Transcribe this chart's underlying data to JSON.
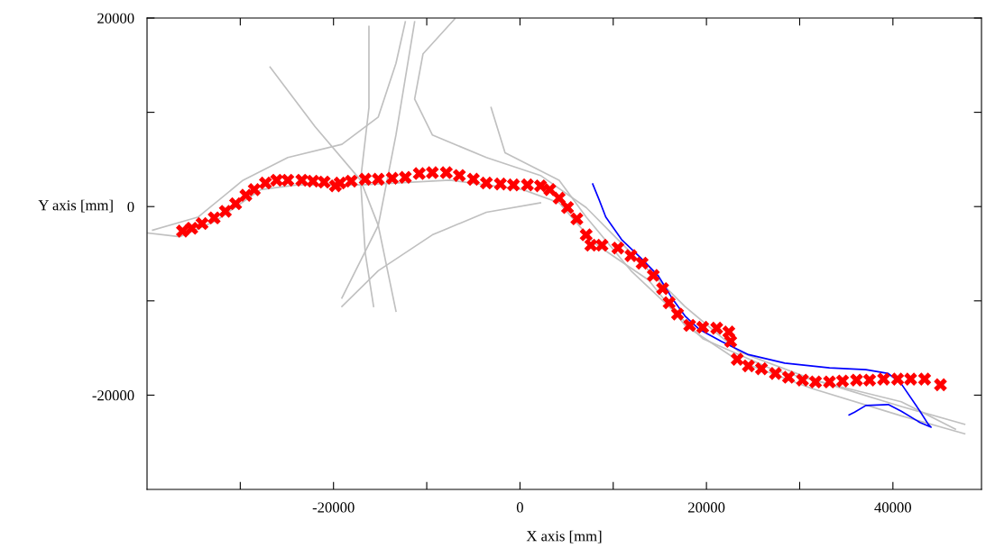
{
  "chart_data": {
    "type": "line",
    "xlabel": "X axis [mm]",
    "ylabel": "Y axis [mm]",
    "xlim": [
      -40000,
      49500
    ],
    "ylim": [
      -30000,
      20000
    ],
    "xticks": [
      {
        "value": -30000,
        "label": null
      },
      -20000,
      {
        "value": -10000,
        "label": null
      },
      0,
      {
        "value": 10000,
        "label": null
      },
      20000,
      {
        "value": 30000,
        "label": null
      },
      40000
    ],
    "yticks": [
      -20000,
      {
        "value": -10000,
        "label": null
      },
      0,
      {
        "value": 10000,
        "label": null
      },
      20000
    ],
    "grid": false,
    "series": [
      {
        "type": "line",
        "color": "#c0c0c0",
        "x": [
          -39900,
          -36500,
          -32600,
          -27800,
          -23900,
          -17100,
          -7500,
          300,
          4200,
          8000,
          13800,
          17700,
          23500,
          31300,
          40900,
          47700
        ],
        "values": [
          -2800,
          -3200,
          -1500,
          1800,
          2300,
          2300,
          2800,
          1800,
          400,
          -3900,
          -7800,
          -12600,
          -16400,
          -19300,
          -22200,
          -24100
        ]
      },
      {
        "type": "line",
        "color": "#c0c0c0",
        "x": [
          -39400,
          -34500,
          -29700,
          -24900,
          -19100,
          -15200,
          -13300,
          -12300
        ],
        "values": [
          -2500,
          -1100,
          2800,
          5200,
          6600,
          9500,
          15200,
          19600
        ]
      },
      {
        "type": "line",
        "color": "#c0c0c0",
        "x": [
          -7000,
          -10400,
          -11300,
          -9400,
          -3600,
          2200,
          7100,
          11900,
          17700,
          23500,
          31300,
          40900,
          47700
        ],
        "values": [
          19900,
          16200,
          11400,
          7600,
          5200,
          3300,
          -100,
          -4900,
          -10600,
          -15400,
          -18300,
          -21200,
          -23100
        ]
      },
      {
        "type": "line",
        "color": "#c0c0c0",
        "x": [
          -26800,
          -22000,
          -17100,
          -15200,
          -14200,
          -13300
        ],
        "values": [
          14800,
          8500,
          2800,
          -2000,
          -6800,
          -11100
        ]
      },
      {
        "type": "line",
        "color": "#c0c0c0",
        "x": [
          -19100,
          -15200,
          -9400,
          -3600,
          2200
        ],
        "values": [
          -10600,
          -6800,
          -3000,
          -600,
          400
        ]
      },
      {
        "type": "line",
        "color": "#c0c0c0",
        "x": [
          -16200,
          -16200,
          -17100,
          -16600,
          -15700
        ],
        "values": [
          19100,
          10500,
          2800,
          -4900,
          -10600
        ]
      },
      {
        "type": "line",
        "color": "#c0c0c0",
        "x": [
          -11300,
          -13300,
          -15200,
          -19100
        ],
        "values": [
          19600,
          7600,
          -2000,
          -9700
        ]
      },
      {
        "type": "line",
        "color": "#c0c0c0",
        "x": [
          -3100,
          -1600,
          4200,
          7100,
          11900,
          19600,
          27400,
          40900,
          46700
        ],
        "values": [
          10500,
          5700,
          2800,
          -1100,
          -6800,
          -14000,
          -17400,
          -20700,
          -23600
        ]
      },
      {
        "type": "scatter",
        "marker": "cross",
        "color": "#ff0000",
        "x": [
          -36200,
          -35200,
          -34100,
          -32800,
          -31600,
          -30500,
          -29400,
          -28500,
          -27300,
          -26100,
          -24900,
          -23400,
          -22200,
          -21000,
          -19800,
          -19300,
          -18100,
          -16600,
          -15200,
          -13700,
          -12300,
          -10800,
          -9400,
          -7900,
          -6500,
          -5000,
          -3600,
          -2100,
          -700,
          800,
          2200,
          3200,
          4200,
          5100,
          6100,
          7100,
          7600,
          8800,
          10500,
          11900,
          13100,
          14300,
          15300,
          16000,
          16900,
          18200,
          19600,
          21100,
          22400,
          22600,
          23300,
          24500,
          25900,
          27400,
          28800,
          30300,
          31700,
          33200,
          34600,
          36100,
          37500,
          39000,
          40500,
          41900,
          43400,
          45100
        ],
        "values": [
          -2600,
          -2300,
          -1800,
          -1200,
          -500,
          300,
          1200,
          1800,
          2500,
          2800,
          2800,
          2800,
          2700,
          2600,
          2200,
          2500,
          2700,
          2900,
          2900,
          3000,
          3100,
          3500,
          3600,
          3600,
          3300,
          2900,
          2500,
          2400,
          2300,
          2300,
          2200,
          1800,
          900,
          -100,
          -1300,
          -3000,
          -4100,
          -4100,
          -4400,
          -5200,
          -6000,
          -7300,
          -8700,
          -10200,
          -11400,
          -12600,
          -12800,
          -12900,
          -13300,
          -14300,
          -16200,
          -16900,
          -17200,
          -17700,
          -18100,
          -18400,
          -18600,
          -18600,
          -18500,
          -18400,
          -18400,
          -18300,
          -18300,
          -18300,
          -18300,
          -18900
        ]
      },
      {
        "color": "#0000ff",
        "x": [
          7800,
          8500,
          9200,
          10900,
          12900,
          14800,
          16300,
          17700,
          19200,
          21600,
          24500,
          28400,
          33200,
          37100,
          39500,
          40900,
          42900,
          43800,
          44100,
          42900,
          40900,
          39500,
          37100,
          35900,
          35300
        ],
        "values": [
          2400,
          700,
          -1100,
          -3500,
          -5400,
          -7300,
          -9700,
          -11600,
          -13000,
          -14300,
          -15700,
          -16600,
          -17100,
          -17300,
          -17700,
          -18800,
          -21700,
          -23100,
          -23400,
          -22900,
          -21700,
          -21000,
          -21100,
          -21800,
          -22100
        ]
      }
    ]
  }
}
